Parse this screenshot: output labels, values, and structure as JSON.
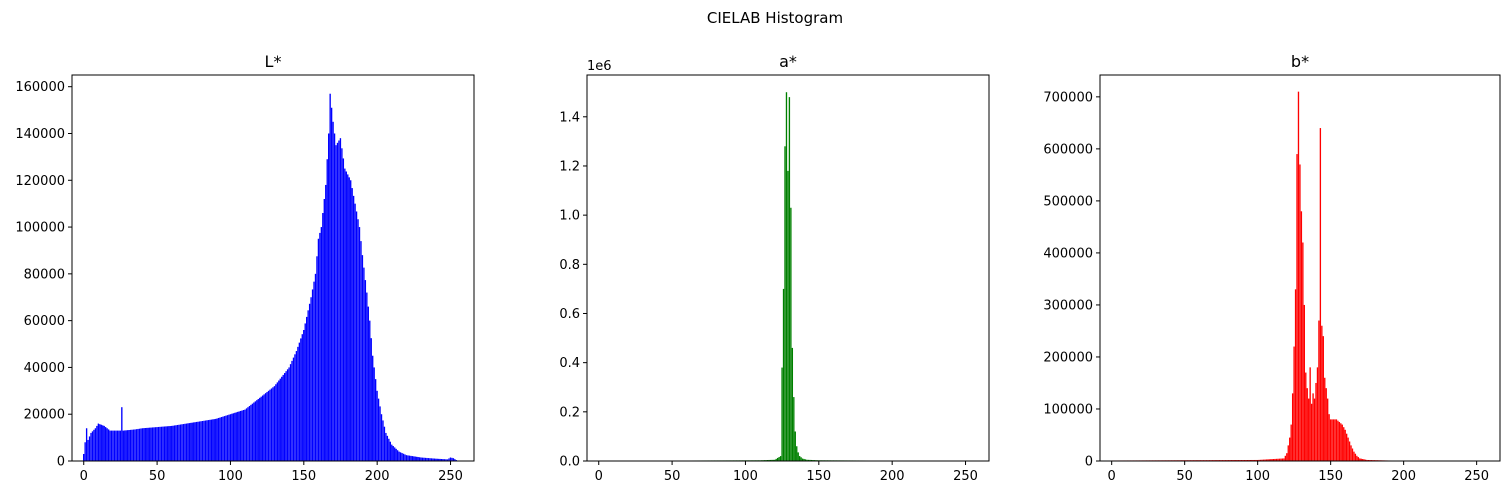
{
  "figure": {
    "suptitle": "CIELAB Histogram"
  },
  "chart_data": [
    {
      "type": "bar",
      "title": "L*",
      "color": "#0000ff",
      "xlim": [
        -8,
        266
      ],
      "ylim": [
        0,
        165000
      ],
      "x_ticks": [
        0,
        50,
        100,
        150,
        200,
        250
      ],
      "x_tick_labels": [
        "0",
        "50",
        "100",
        "150",
        "200",
        "250"
      ],
      "y_ticks": [
        0,
        20000,
        40000,
        60000,
        80000,
        100000,
        120000,
        140000,
        160000
      ],
      "y_tick_labels": [
        "0",
        "20000",
        "40000",
        "60000",
        "80000",
        "100000",
        "120000",
        "140000",
        "160000"
      ],
      "y_offset_label": "",
      "points": [
        [
          0,
          3000
        ],
        [
          1,
          8000
        ],
        [
          2,
          14000
        ],
        [
          3,
          9000
        ],
        [
          5,
          12000
        ],
        [
          8,
          14000
        ],
        [
          10,
          16000
        ],
        [
          14,
          15000
        ],
        [
          18,
          13000
        ],
        [
          25,
          13000
        ],
        [
          26,
          23000
        ],
        [
          27,
          13000
        ],
        [
          35,
          13500
        ],
        [
          40,
          14000
        ],
        [
          50,
          14500
        ],
        [
          60,
          15000
        ],
        [
          75,
          16500
        ],
        [
          90,
          18000
        ],
        [
          100,
          20000
        ],
        [
          110,
          22000
        ],
        [
          120,
          27000
        ],
        [
          130,
          32000
        ],
        [
          140,
          40000
        ],
        [
          145,
          47000
        ],
        [
          150,
          56000
        ],
        [
          155,
          70000
        ],
        [
          158,
          80000
        ],
        [
          160,
          95000
        ],
        [
          162,
          100000
        ],
        [
          165,
          118000
        ],
        [
          167,
          140000
        ],
        [
          168,
          157000
        ],
        [
          170,
          145000
        ],
        [
          172,
          135000
        ],
        [
          175,
          138000
        ],
        [
          178,
          125000
        ],
        [
          182,
          120000
        ],
        [
          185,
          110000
        ],
        [
          188,
          100000
        ],
        [
          190,
          88000
        ],
        [
          193,
          72000
        ],
        [
          195,
          60000
        ],
        [
          197,
          45000
        ],
        [
          200,
          30000
        ],
        [
          203,
          20000
        ],
        [
          206,
          12000
        ],
        [
          210,
          7000
        ],
        [
          215,
          4000
        ],
        [
          220,
          2500
        ],
        [
          230,
          1500
        ],
        [
          240,
          1000
        ],
        [
          248,
          700
        ],
        [
          250,
          1500
        ],
        [
          252,
          1200
        ],
        [
          255,
          0
        ]
      ]
    },
    {
      "type": "bar",
      "title": "a*",
      "color": "#008000",
      "xlim": [
        -8,
        266
      ],
      "ylim": [
        0,
        1.57
      ],
      "x_ticks": [
        0,
        50,
        100,
        150,
        200,
        250
      ],
      "x_tick_labels": [
        "0",
        "50",
        "100",
        "150",
        "200",
        "250"
      ],
      "y_ticks": [
        0,
        0.2,
        0.4,
        0.6,
        0.8,
        1.0,
        1.2,
        1.4
      ],
      "y_tick_labels": [
        "0.0",
        "0.2",
        "0.4",
        "0.6",
        "0.8",
        "1.0",
        "1.2",
        "1.4"
      ],
      "y_offset_label": "1e6",
      "points": [
        [
          0,
          0.001
        ],
        [
          60,
          0.002
        ],
        [
          110,
          0.003
        ],
        [
          120,
          0.005
        ],
        [
          124,
          0.02
        ],
        [
          125,
          0.38
        ],
        [
          126,
          0.7
        ],
        [
          127,
          1.28
        ],
        [
          128,
          1.5
        ],
        [
          129,
          1.18
        ],
        [
          130,
          1.48
        ],
        [
          131,
          1.03
        ],
        [
          132,
          0.46
        ],
        [
          133,
          0.26
        ],
        [
          134,
          0.12
        ],
        [
          135,
          0.06
        ],
        [
          136,
          0.035
        ],
        [
          137,
          0.02
        ],
        [
          139,
          0.01
        ],
        [
          142,
          0.005
        ],
        [
          150,
          0.003
        ],
        [
          255,
          0.0
        ]
      ]
    },
    {
      "type": "bar",
      "title": "b*",
      "color": "#ff0000",
      "xlim": [
        -8,
        266
      ],
      "ylim": [
        0,
        742000
      ],
      "x_ticks": [
        0,
        50,
        100,
        150,
        200,
        250
      ],
      "x_tick_labels": [
        "0",
        "50",
        "100",
        "150",
        "200",
        "250"
      ],
      "y_ticks": [
        0,
        100000,
        200000,
        300000,
        400000,
        500000,
        600000,
        700000
      ],
      "y_tick_labels": [
        "0",
        "100000",
        "200000",
        "300000",
        "400000",
        "500000",
        "600000",
        "700000"
      ],
      "y_offset_label": "",
      "points": [
        [
          0,
          1000
        ],
        [
          100,
          2000
        ],
        [
          118,
          5000
        ],
        [
          120,
          15000
        ],
        [
          121,
          30000
        ],
        [
          122,
          45000
        ],
        [
          123,
          70000
        ],
        [
          124,
          130000
        ],
        [
          125,
          220000
        ],
        [
          126,
          330000
        ],
        [
          127,
          590000
        ],
        [
          128,
          710000
        ],
        [
          129,
          570000
        ],
        [
          130,
          480000
        ],
        [
          131,
          420000
        ],
        [
          132,
          300000
        ],
        [
          133,
          170000
        ],
        [
          134,
          140000
        ],
        [
          135,
          120000
        ],
        [
          136,
          180000
        ],
        [
          137,
          110000
        ],
        [
          138,
          130000
        ],
        [
          139,
          120000
        ],
        [
          140,
          150000
        ],
        [
          141,
          180000
        ],
        [
          142,
          270000
        ],
        [
          143,
          640000
        ],
        [
          144,
          260000
        ],
        [
          145,
          240000
        ],
        [
          146,
          160000
        ],
        [
          147,
          140000
        ],
        [
          148,
          120000
        ],
        [
          149,
          90000
        ],
        [
          150,
          80000
        ],
        [
          152,
          80000
        ],
        [
          154,
          80000
        ],
        [
          156,
          75000
        ],
        [
          158,
          70000
        ],
        [
          160,
          60000
        ],
        [
          162,
          45000
        ],
        [
          164,
          30000
        ],
        [
          166,
          18000
        ],
        [
          168,
          10000
        ],
        [
          170,
          5000
        ],
        [
          175,
          2000
        ],
        [
          190,
          1000
        ],
        [
          255,
          0
        ]
      ]
    }
  ]
}
